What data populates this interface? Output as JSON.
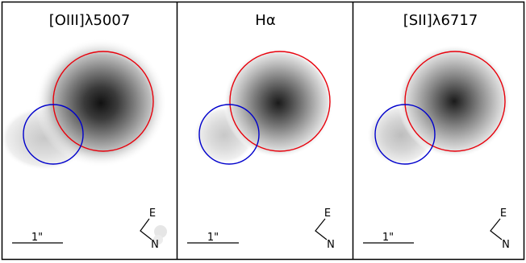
{
  "panels": [
    {
      "id": "oiii",
      "title": "[OIII]λ5007",
      "scale_label": "1\"",
      "compass": {
        "east": "E",
        "north": "N"
      }
    },
    {
      "id": "halpha",
      "title": "Hα",
      "scale_label": "1\"",
      "compass": {
        "east": "E",
        "north": "N"
      }
    },
    {
      "id": "sii",
      "title": "[SII]λ6717",
      "scale_label": "1\"",
      "compass": {
        "east": "E",
        "north": "N"
      }
    }
  ],
  "colors": {
    "large_circle": "#e8000b",
    "small_circle": "#0000cc",
    "frame": "#000000"
  }
}
